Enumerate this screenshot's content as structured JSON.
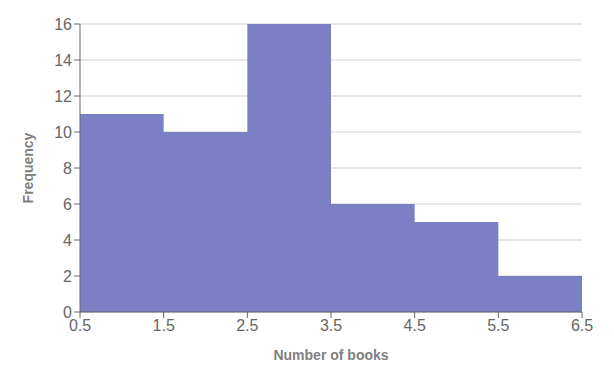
{
  "chart_data": {
    "type": "histogram",
    "xlabel": "Number of books",
    "ylabel": "Frequency",
    "bins": [
      0.5,
      1.5,
      2.5,
      3.5,
      4.5,
      5.5,
      6.5
    ],
    "counts": [
      11,
      10,
      16,
      6,
      5,
      2
    ],
    "color": "#7b7fc4",
    "xlim": [
      0.5,
      6.5
    ],
    "ylim": [
      0,
      16
    ],
    "xticks": [
      0.5,
      1.5,
      2.5,
      3.5,
      4.5,
      5.5,
      6.5
    ],
    "yticks": [
      0,
      2,
      4,
      6,
      8,
      10,
      12,
      14,
      16
    ],
    "grid": true
  }
}
